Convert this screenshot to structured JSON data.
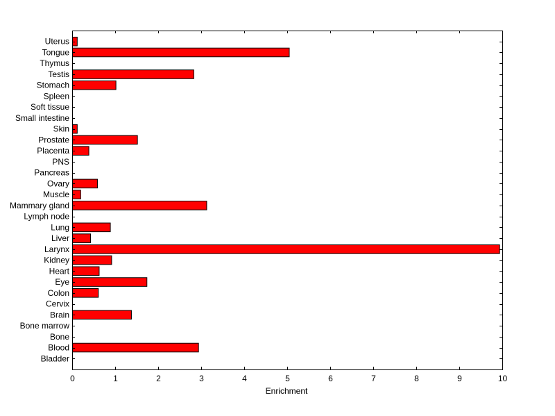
{
  "chart_data": {
    "type": "bar",
    "orientation": "horizontal",
    "xlabel": "Enrichment",
    "ylabel": "",
    "title": "",
    "xlim": [
      0,
      10
    ],
    "xticks": [
      "0",
      "1",
      "2",
      "3",
      "4",
      "5",
      "6",
      "7",
      "8",
      "9",
      "10"
    ],
    "bar_color": "#ff0000",
    "grid": false,
    "categories": [
      "Bladder",
      "Blood",
      "Bone",
      "Bone marrow",
      "Brain",
      "Cervix",
      "Colon",
      "Eye",
      "Heart",
      "Kidney",
      "Larynx",
      "Liver",
      "Lung",
      "Lymph node",
      "Mammary gland",
      "Muscle",
      "Ovary",
      "Pancreas",
      "PNS",
      "Placenta",
      "Prostate",
      "Skin",
      "Small intestine",
      "Soft tissue",
      "Spleen",
      "Stomach",
      "Testis",
      "Thymus",
      "Tongue",
      "Uterus"
    ],
    "values": [
      0,
      2.93,
      0,
      0,
      1.37,
      0,
      0.6,
      1.73,
      0.62,
      0.91,
      9.93,
      0.42,
      0.88,
      0,
      3.12,
      0.19,
      0.58,
      0,
      0,
      0.38,
      1.51,
      0.11,
      0,
      0,
      0,
      1.01,
      2.82,
      0,
      5.04,
      0.11
    ]
  }
}
